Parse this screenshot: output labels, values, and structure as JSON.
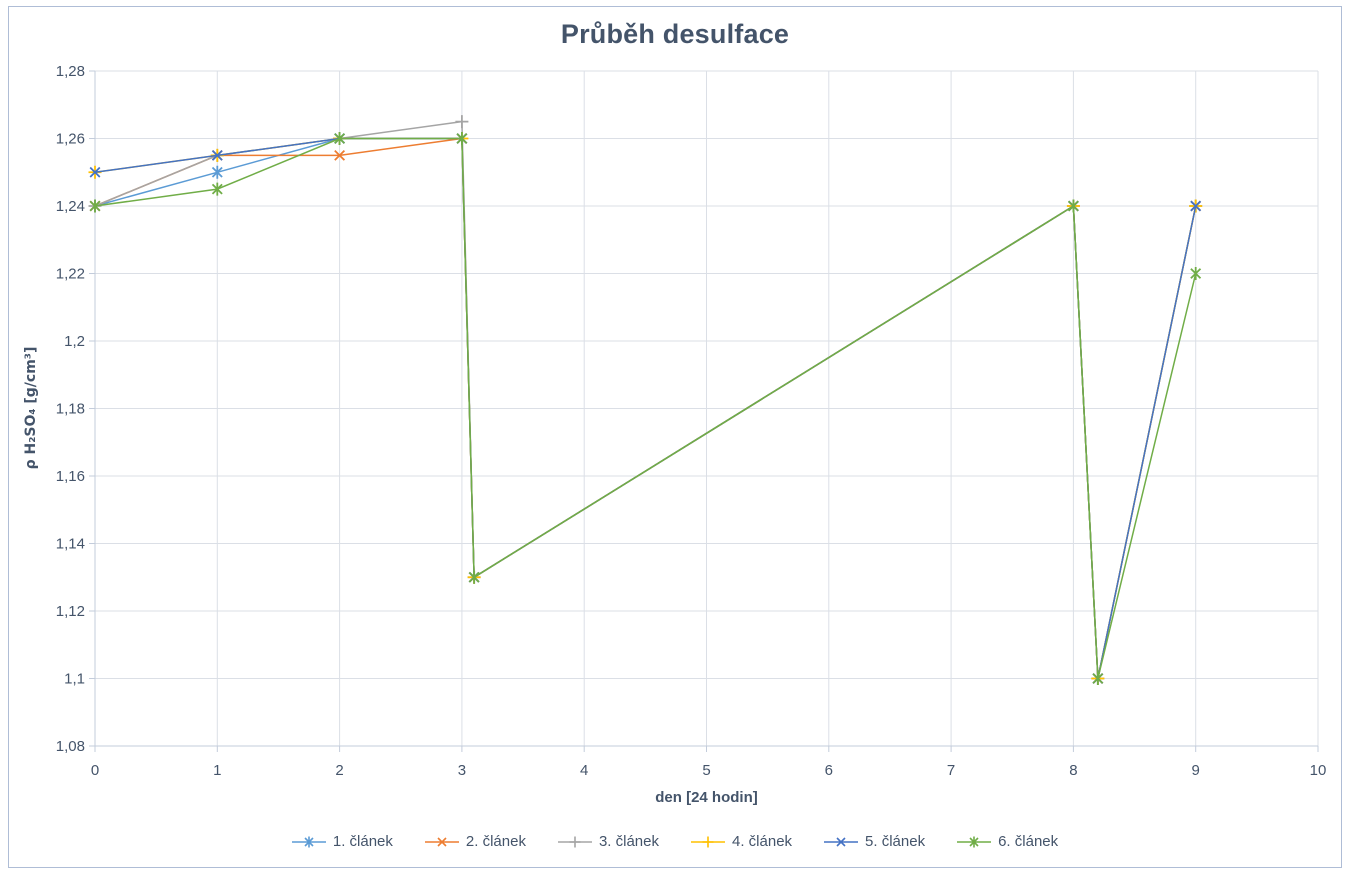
{
  "chart_data": {
    "type": "line",
    "title": "Průběh desulface",
    "xlabel": "den [24 hodin]",
    "ylabel": "ρ H₂SO₄ [g/cm³]",
    "xlim": [
      0,
      10
    ],
    "ylim": [
      1.08,
      1.28
    ],
    "grid": true,
    "legend_position": "bottom",
    "x_ticks": [
      {
        "value": 0,
        "label": "0"
      },
      {
        "value": 1,
        "label": "1"
      },
      {
        "value": 2,
        "label": "2"
      },
      {
        "value": 3,
        "label": "3"
      },
      {
        "value": 4,
        "label": "4"
      },
      {
        "value": 5,
        "label": "5"
      },
      {
        "value": 6,
        "label": "6"
      },
      {
        "value": 7,
        "label": "7"
      },
      {
        "value": 8,
        "label": "8"
      },
      {
        "value": 9,
        "label": "9"
      },
      {
        "value": 10,
        "label": "10"
      }
    ],
    "y_ticks": [
      {
        "value": 1.08,
        "label": "1,08"
      },
      {
        "value": 1.1,
        "label": "1,1"
      },
      {
        "value": 1.12,
        "label": "1,12"
      },
      {
        "value": 1.14,
        "label": "1,14"
      },
      {
        "value": 1.16,
        "label": "1,16"
      },
      {
        "value": 1.18,
        "label": "1,18"
      },
      {
        "value": 1.2,
        "label": "1,2"
      },
      {
        "value": 1.22,
        "label": "1,22"
      },
      {
        "value": 1.24,
        "label": "1,24"
      },
      {
        "value": 1.26,
        "label": "1,26"
      },
      {
        "value": 1.28,
        "label": "1,28"
      }
    ],
    "x": [
      0,
      1,
      2,
      3,
      3.1,
      8,
      8.2,
      9
    ],
    "series": [
      {
        "name": "1. článek",
        "color": "#5B9BD5",
        "marker": "asterisk",
        "values": [
          1.24,
          1.25,
          1.26,
          1.26,
          1.13,
          1.24,
          1.1,
          1.24
        ]
      },
      {
        "name": "2. článek",
        "color": "#ED7D31",
        "marker": "x",
        "values": [
          1.24,
          1.255,
          1.255,
          1.26,
          1.13,
          1.24,
          1.1,
          1.24
        ]
      },
      {
        "name": "3. článek",
        "color": "#A5A5A5",
        "marker": "plus",
        "values": [
          1.24,
          1.255,
          1.26,
          1.265,
          1.13,
          1.24,
          1.1,
          1.24
        ]
      },
      {
        "name": "4. článek",
        "color": "#FFC000",
        "marker": "plus",
        "values": [
          1.25,
          1.255,
          1.26,
          1.26,
          1.13,
          1.24,
          1.1,
          1.24
        ]
      },
      {
        "name": "5. článek",
        "color": "#4472C4",
        "marker": "x",
        "values": [
          1.25,
          1.255,
          1.26,
          1.26,
          1.13,
          1.24,
          1.1,
          1.24
        ]
      },
      {
        "name": "6. článek",
        "color": "#70AD47",
        "marker": "asterisk",
        "values": [
          1.24,
          1.245,
          1.26,
          1.26,
          1.13,
          1.24,
          1.1,
          1.22
        ]
      }
    ],
    "colors": {
      "text": "#44546A",
      "gridline": "#DBDFE6",
      "axis": "#C3CCDB",
      "frame_border": "#AFBDD6"
    }
  }
}
